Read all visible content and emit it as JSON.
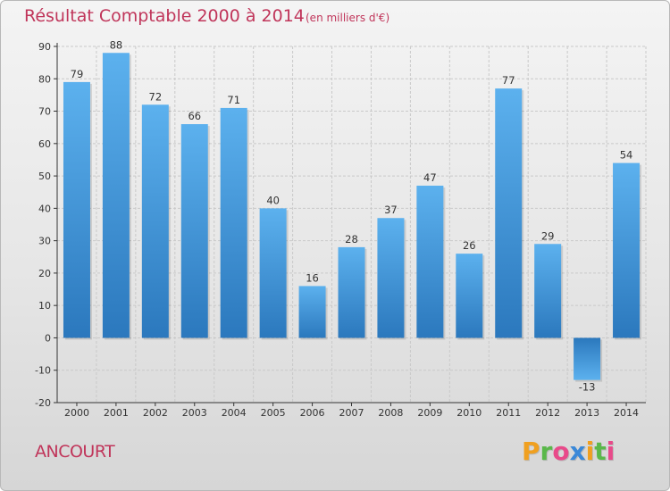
{
  "header": {
    "title": "Résultat Comptable 2000 à 2014",
    "subtitle": "(en milliers d'€)"
  },
  "footer": {
    "commune": "ANCOURT",
    "brand": "Proxiti",
    "brand_letters": [
      "P",
      "r",
      "o",
      "x",
      "i",
      "t",
      "i"
    ],
    "brand_colors": [
      "#f0a020",
      "#5ab84a",
      "#e84a8a",
      "#3a88d8",
      "#f0a020",
      "#5ab84a",
      "#e84a8a"
    ]
  },
  "colors": {
    "title": "#c0355a",
    "bar_light": "#5aaeea",
    "bar_dark": "#2f7fc4",
    "grid": "#c8c8c8",
    "axis": "#333333"
  },
  "chart_data": {
    "type": "bar",
    "title": "Résultat Comptable 2000 à 2014",
    "subtitle": "(en milliers d'€)",
    "xlabel": "",
    "ylabel": "",
    "categories": [
      "2000",
      "2001",
      "2002",
      "2003",
      "2004",
      "2005",
      "2006",
      "2007",
      "2008",
      "2009",
      "2010",
      "2011",
      "2012",
      "2013",
      "2014"
    ],
    "values": [
      79,
      88,
      72,
      66,
      71,
      40,
      16,
      28,
      37,
      47,
      26,
      77,
      29,
      -13,
      54
    ],
    "ylim": [
      -20,
      90
    ],
    "yticks": [
      -20,
      -10,
      0,
      10,
      20,
      30,
      40,
      50,
      60,
      70,
      80,
      90
    ],
    "grid": true,
    "data_labels": true
  }
}
